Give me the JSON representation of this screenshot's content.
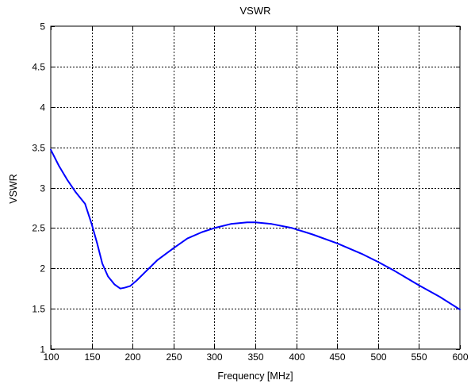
{
  "chart_data": {
    "type": "line",
    "title": "VSWR",
    "xlabel": "Frequency [MHz]",
    "ylabel": "VSWR",
    "xlim": [
      100,
      600
    ],
    "ylim": [
      1,
      5
    ],
    "xticks": [
      "100",
      "150",
      "200",
      "250",
      "300",
      "350",
      "400",
      "450",
      "500",
      "550",
      "600"
    ],
    "yticks": [
      "1",
      "1.5",
      "2",
      "2.5",
      "3",
      "3.5",
      "4",
      "4.5",
      "5"
    ],
    "grid": true,
    "line_color": "#0000ff",
    "series": [
      {
        "x": [
          100,
          110,
          120,
          130,
          142,
          150,
          157,
          163,
          170,
          178,
          185,
          190,
          197,
          205,
          215,
          230,
          250,
          267,
          285,
          300,
          320,
          340,
          350,
          370,
          395,
          420,
          450,
          480,
          500,
          520,
          550,
          575,
          600
        ],
        "y": [
          3.47,
          3.27,
          3.1,
          2.95,
          2.8,
          2.55,
          2.3,
          2.06,
          1.9,
          1.8,
          1.75,
          1.76,
          1.78,
          1.85,
          1.95,
          2.1,
          2.25,
          2.37,
          2.45,
          2.5,
          2.55,
          2.57,
          2.57,
          2.55,
          2.5,
          2.42,
          2.31,
          2.18,
          2.08,
          1.97,
          1.79,
          1.65,
          1.49
        ]
      }
    ]
  }
}
